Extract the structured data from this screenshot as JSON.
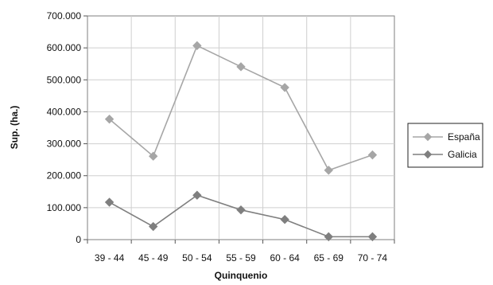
{
  "chart_data": {
    "type": "line",
    "categories": [
      "39 - 44",
      "45 - 49",
      "50 - 54",
      "55 - 59",
      "60 - 64",
      "65 - 69",
      "70 - 74"
    ],
    "series": [
      {
        "name": "España",
        "values": [
          377000,
          261000,
          607000,
          541000,
          476000,
          217000,
          265000
        ],
        "color": "#a6a6a6"
      },
      {
        "name": "Galicia",
        "values": [
          117000,
          41000,
          139000,
          93000,
          63000,
          9000,
          9000
        ],
        "color": "#7f7f7f"
      }
    ],
    "xlabel": "Quinquenio",
    "ylabel": "Sup. (ha.)",
    "ylim": [
      0,
      700000
    ],
    "yticks": [
      0,
      100000,
      200000,
      300000,
      400000,
      500000,
      600000,
      700000
    ],
    "yticklabels": [
      "0",
      "100.000",
      "200.000",
      "300.000",
      "400.000",
      "500.000",
      "600.000",
      "700.000"
    ],
    "grid": true,
    "legend_position": "right"
  }
}
